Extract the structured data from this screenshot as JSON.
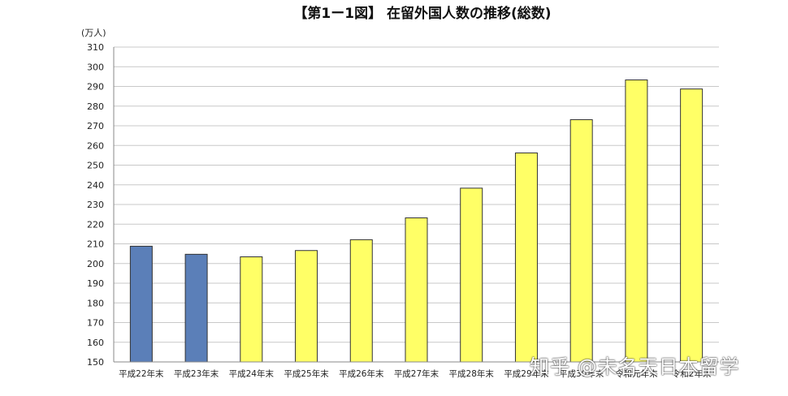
{
  "chart_data": {
    "type": "bar",
    "title": "【第1ー1図】 在留外国人数の推移(総数)",
    "unit": "(万人)",
    "categories": [
      "平成22年末",
      "平成23年末",
      "平成24年末",
      "平成25年末",
      "平成26年末",
      "平成27年末",
      "平成28年末",
      "平成29年末",
      "平成30年末",
      "令和元年末",
      "令和2年末"
    ],
    "values": [
      208.8,
      204.7,
      203.4,
      206.6,
      212.1,
      223.2,
      238.3,
      256.2,
      273.1,
      293.3,
      288.7
    ],
    "bar_colors": [
      "#5b7fb8",
      "#5b7fb8",
      "#ffff66",
      "#ffff66",
      "#ffff66",
      "#ffff66",
      "#ffff66",
      "#ffff66",
      "#ffff66",
      "#ffff66",
      "#ffff66"
    ],
    "ylim": [
      150,
      310
    ],
    "ytick_step": 10,
    "grid": true,
    "legend": "none"
  },
  "watermark": "知乎 @未名天日本留学",
  "colors": {
    "grid": "#c8c8c8",
    "axis": "#888888",
    "bar_outline": "#333333"
  }
}
